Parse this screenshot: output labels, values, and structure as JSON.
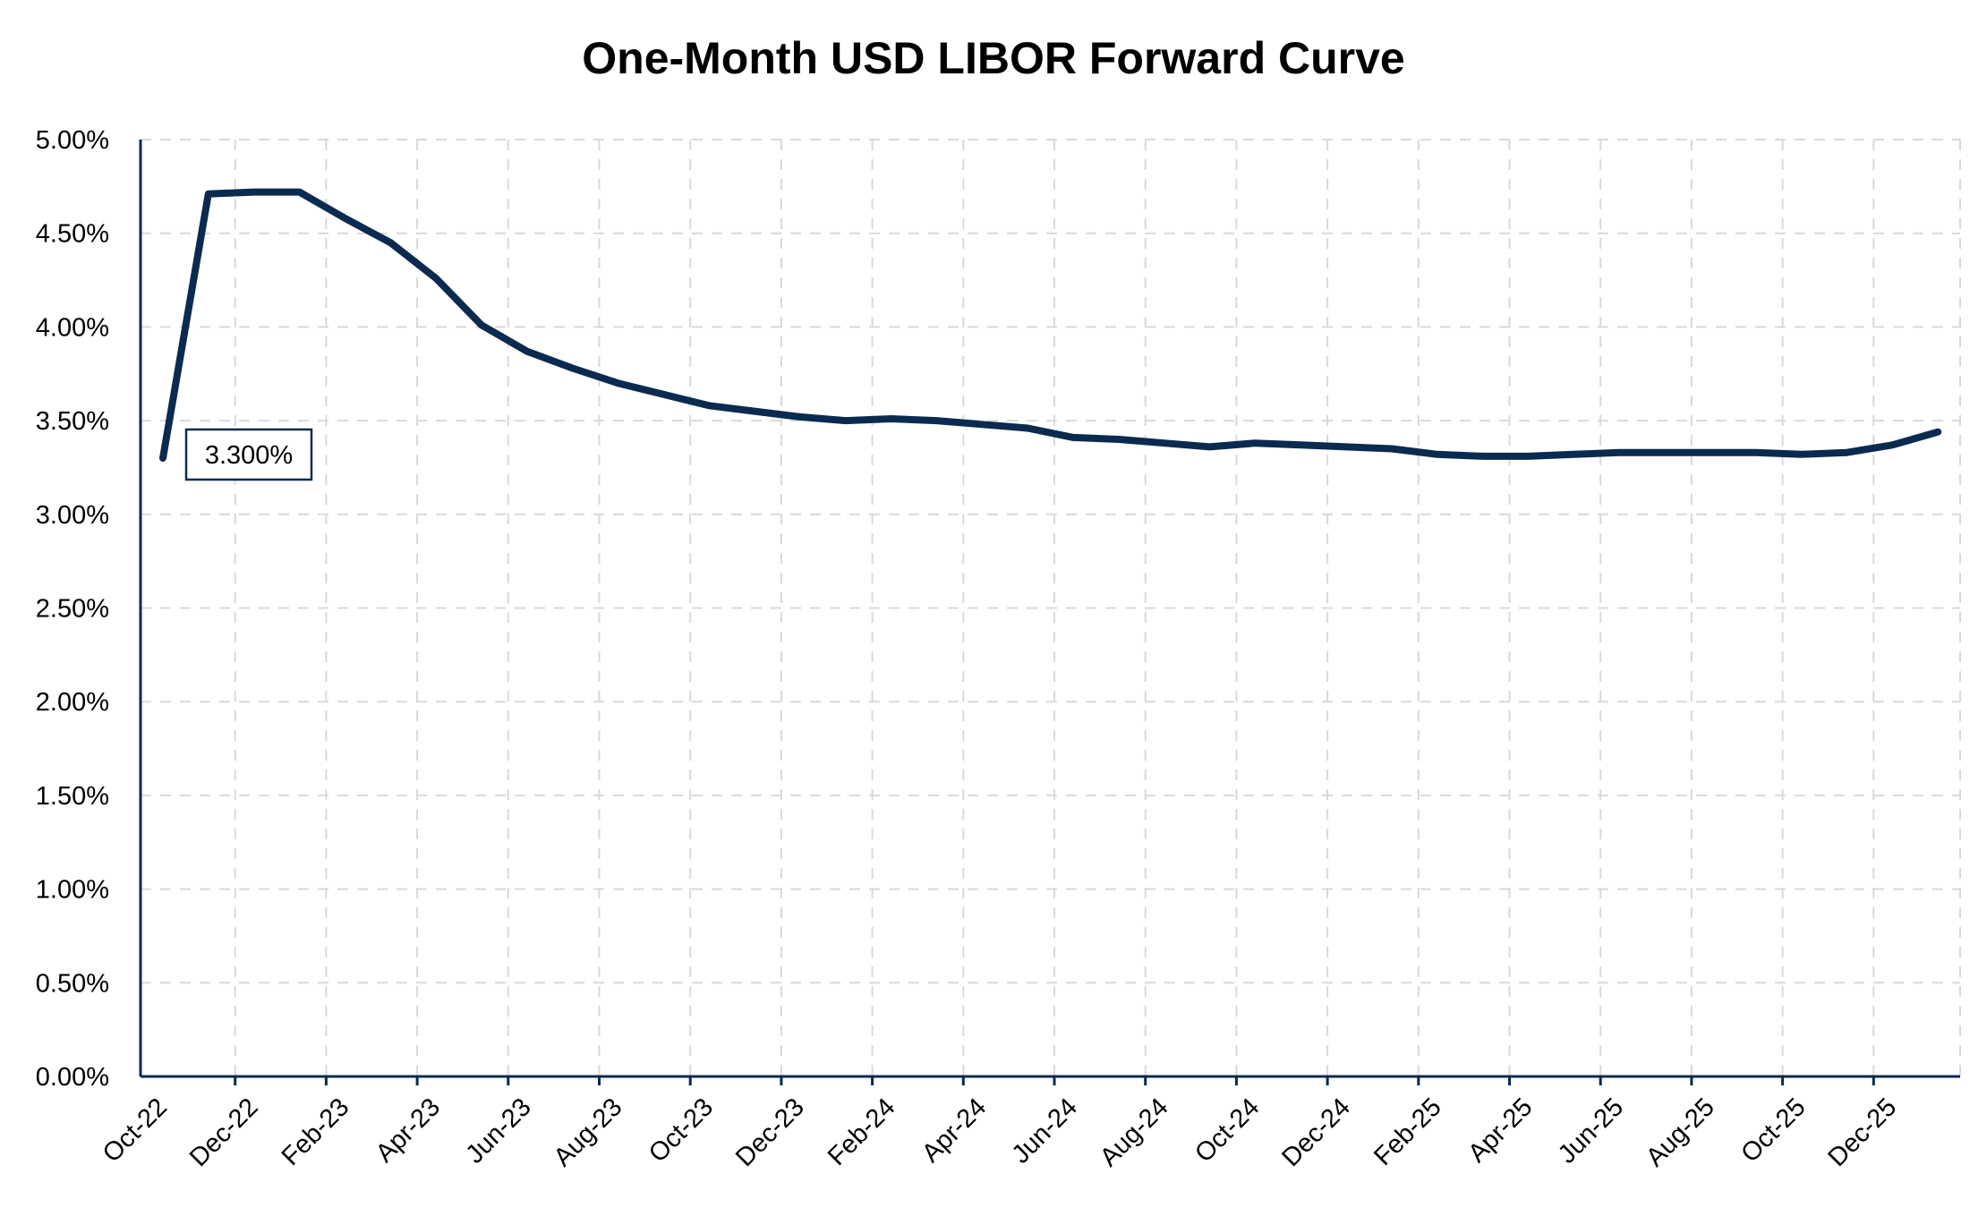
{
  "chart_data": {
    "type": "line",
    "title": "One-Month USD LIBOR Forward Curve",
    "xlabel": "",
    "ylabel": "",
    "ylim": [
      0,
      5
    ],
    "y_ticks": [
      "0.00%",
      "0.50%",
      "1.00%",
      "1.50%",
      "2.00%",
      "2.50%",
      "3.00%",
      "3.50%",
      "4.00%",
      "4.50%",
      "5.00%"
    ],
    "x_tick_labels": [
      "Oct-22",
      "Dec-22",
      "Feb-23",
      "Apr-23",
      "Jun-23",
      "Aug-23",
      "Oct-23",
      "Dec-23",
      "Feb-24",
      "Apr-24",
      "Jun-24",
      "Aug-24",
      "Oct-24",
      "Dec-24",
      "Feb-25",
      "Apr-25",
      "Jun-25",
      "Aug-25",
      "Oct-25",
      "Dec-25"
    ],
    "grid": true,
    "legend": "none",
    "series": [
      {
        "color": "#0b2a4f",
        "x": [
          "2022-10-01",
          "2022-11-01",
          "2022-12-01",
          "2023-01-01",
          "2023-02-01",
          "2023-03-01",
          "2023-04-01",
          "2023-05-01",
          "2023-06-01",
          "2023-07-01",
          "2023-08-01",
          "2023-09-01",
          "2023-10-01",
          "2023-11-01",
          "2023-12-01",
          "2024-01-01",
          "2024-02-01",
          "2024-03-01",
          "2024-04-01",
          "2024-05-01",
          "2024-06-01",
          "2024-07-01",
          "2024-08-01",
          "2024-09-01",
          "2024-10-01",
          "2024-11-01",
          "2024-12-01",
          "2025-01-01",
          "2025-02-01",
          "2025-03-01",
          "2025-04-01",
          "2025-05-01",
          "2025-06-01",
          "2025-07-01",
          "2025-08-01",
          "2025-09-01",
          "2025-10-01",
          "2025-11-01",
          "2025-12-01",
          "2026-01-01"
        ],
        "values": [
          3.3,
          4.71,
          4.72,
          4.72,
          4.58,
          4.45,
          4.26,
          4.01,
          3.87,
          3.78,
          3.7,
          3.64,
          3.58,
          3.55,
          3.52,
          3.5,
          3.51,
          3.5,
          3.48,
          3.46,
          3.41,
          3.4,
          3.38,
          3.36,
          3.38,
          3.37,
          3.36,
          3.35,
          3.32,
          3.31,
          3.31,
          3.32,
          3.33,
          3.33,
          3.33,
          3.33,
          3.32,
          3.33,
          3.37,
          3.44
        ]
      }
    ],
    "annotations": [
      {
        "label": "3.300%",
        "x": "2022-10-01",
        "y": 3.3
      }
    ]
  }
}
